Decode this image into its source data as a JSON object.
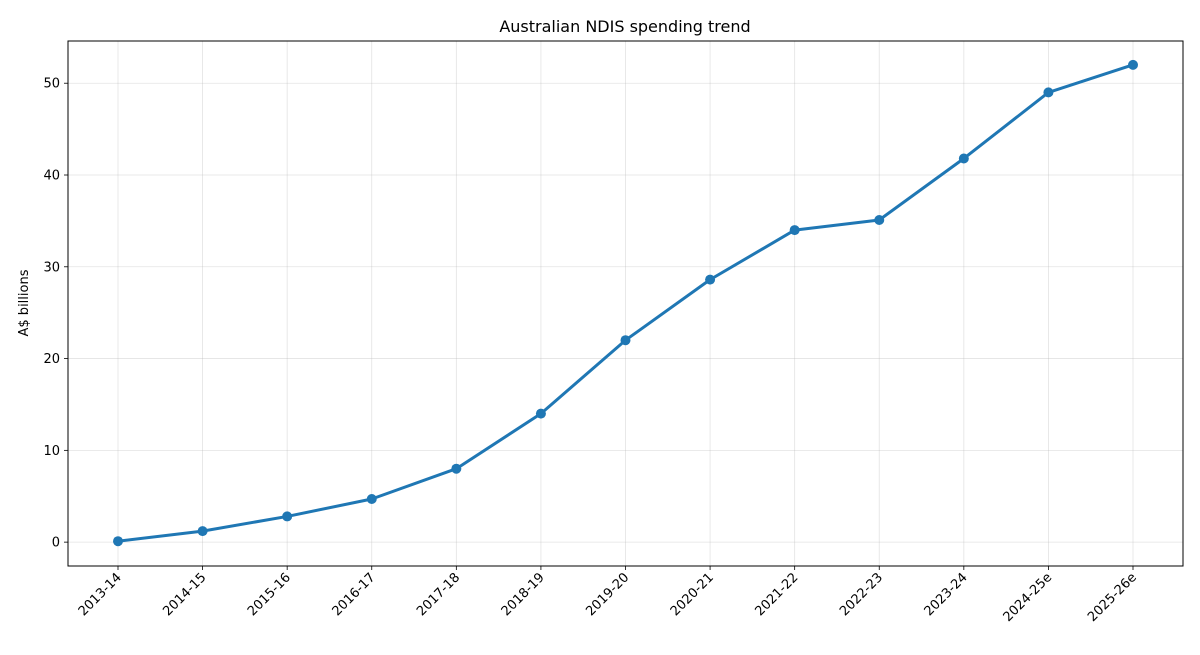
{
  "chart_data": {
    "type": "line",
    "title": "Australian NDIS spending trend",
    "xlabel": "",
    "ylabel": "A$ billions",
    "categories": [
      "2013-14",
      "2014-15",
      "2015-16",
      "2016-17",
      "2017-18",
      "2018-19",
      "2019-20",
      "2020-21",
      "2021-22",
      "2022-23",
      "2023-24",
      "2024-25e",
      "2025-26e"
    ],
    "series": [
      {
        "values": [
          0.1,
          1.2,
          2.8,
          4.7,
          8.0,
          14.0,
          22.0,
          28.6,
          34.0,
          35.1,
          41.8,
          49.0,
          52.0
        ],
        "color": "#1f77b4"
      }
    ],
    "ylim": [
      -2.6,
      54.6
    ],
    "yticks": [
      0,
      10,
      20,
      30,
      40,
      50
    ],
    "grid": true,
    "legend": "none"
  }
}
